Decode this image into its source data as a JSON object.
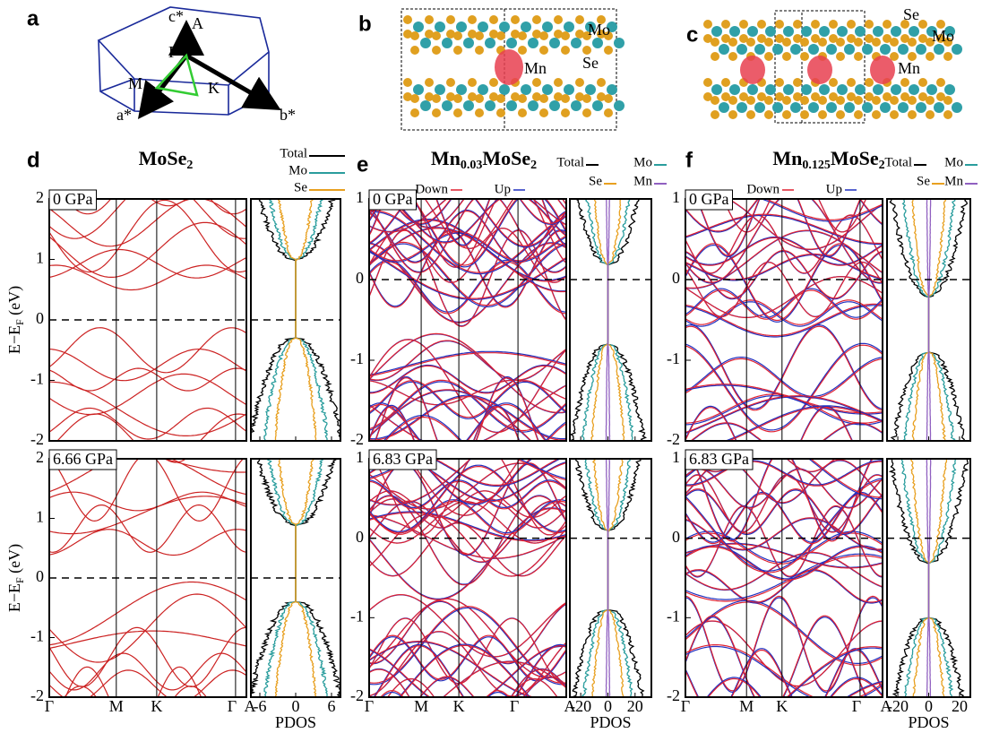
{
  "panels": [
    {
      "label": "a",
      "annotations": [
        "c*",
        "A",
        "Γ",
        "M",
        "K",
        "a*",
        "b*"
      ]
    },
    {
      "label": "b",
      "annotations": [
        "Mo",
        "Se",
        "Mn"
      ]
    },
    {
      "label": "c",
      "annotations": [
        "Se",
        "Mo",
        "Mn"
      ]
    }
  ],
  "band_panels": [
    {
      "label": "d",
      "title": [
        "MoSe",
        "2"
      ],
      "legend": [
        {
          "name": "Total",
          "color": "#000000"
        },
        {
          "name": "Mo",
          "color": "#2a9d9d"
        },
        {
          "name": "Se",
          "color": "#e8a020"
        }
      ],
      "rows": [
        {
          "pressure": "0 GPa"
        },
        {
          "pressure": "6.66 GPa"
        }
      ],
      "ylabel": [
        "E−E",
        "F",
        " (eV)"
      ],
      "ylim": [
        -2,
        2
      ],
      "yticks": [
        -2,
        -1,
        0,
        1,
        2
      ],
      "kpoints": [
        "Γ",
        "M",
        "K",
        "Γ",
        "A"
      ],
      "pdos_xlim": [
        -7.5,
        7.5
      ],
      "pdos_xticks": [
        -6,
        0,
        6
      ],
      "pdos_label": "PDOS"
    },
    {
      "label": "e",
      "title": [
        "Mn",
        "0.03",
        "MoSe",
        "2"
      ],
      "legend": [
        {
          "name": "Total",
          "color": "#000000"
        },
        {
          "name": "Mo",
          "color": "#2a9d9d"
        },
        {
          "name": "Se",
          "color": "#e8a020"
        },
        {
          "name": "Mn",
          "color": "#9060c0"
        }
      ],
      "spin_legend": [
        {
          "name": "Down",
          "color": "#e02030"
        },
        {
          "name": "Up",
          "color": "#2030c0"
        }
      ],
      "rows": [
        {
          "pressure": "0 GPa"
        },
        {
          "pressure": "6.83 GPa"
        }
      ],
      "ylim": [
        -2,
        1
      ],
      "yticks": [
        -2,
        -1,
        0,
        1
      ],
      "kpoints": [
        "Γ",
        "M",
        "K",
        "Γ",
        "A"
      ],
      "pdos_xlim": [
        -28,
        32
      ],
      "pdos_xticks": [
        -20,
        0,
        20
      ],
      "pdos_label": "PDOS"
    },
    {
      "label": "f",
      "title": [
        "Mn",
        "0.125",
        "MoSe",
        "2"
      ],
      "legend": [
        {
          "name": "Total",
          "color": "#000000"
        },
        {
          "name": "Mo",
          "color": "#2a9d9d"
        },
        {
          "name": "Se",
          "color": "#e8a020"
        },
        {
          "name": "Mn",
          "color": "#9060c0"
        }
      ],
      "spin_legend": [
        {
          "name": "Down",
          "color": "#e02030"
        },
        {
          "name": "Up",
          "color": "#2030c0"
        }
      ],
      "rows": [
        {
          "pressure": "0 GPa"
        },
        {
          "pressure": "6.83 GPa"
        }
      ],
      "ylim": [
        -2,
        1
      ],
      "yticks": [
        -2,
        -1,
        0,
        1
      ],
      "kpoints": [
        "Γ",
        "M",
        "K",
        "Γ",
        "A"
      ],
      "pdos_xlim": [
        -27,
        27
      ],
      "pdos_xticks": [
        -20,
        0,
        20
      ],
      "pdos_label": "PDOS"
    }
  ]
}
